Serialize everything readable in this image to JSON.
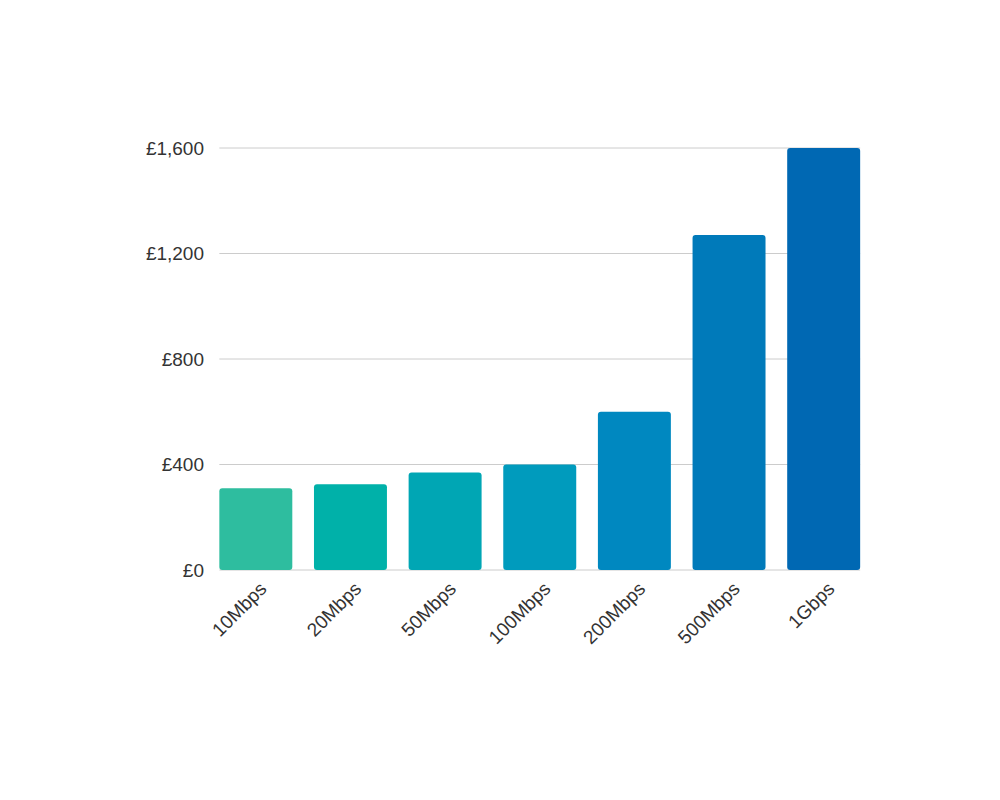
{
  "chart_data": {
    "type": "bar",
    "categories": [
      "10Mbps",
      "20Mbps",
      "50Mbps",
      "100Mbps",
      "200Mbps",
      "500Mbps",
      "1Gbps"
    ],
    "values": [
      310,
      325,
      370,
      400,
      600,
      1270,
      1600
    ],
    "colors": [
      "#2ebd9f",
      "#00b1a9",
      "#00a6b4",
      "#009bbd",
      "#0088c0",
      "#007aba",
      "#0068b3"
    ],
    "ylim": [
      0,
      1600
    ],
    "yticks": [
      {
        "value": 0,
        "label": "£0"
      },
      {
        "value": 400,
        "label": "£400"
      },
      {
        "value": 800,
        "label": "£800"
      },
      {
        "value": 1200,
        "label": "£1,200"
      },
      {
        "value": 1600,
        "label": "£1,600"
      }
    ],
    "grid": true
  }
}
